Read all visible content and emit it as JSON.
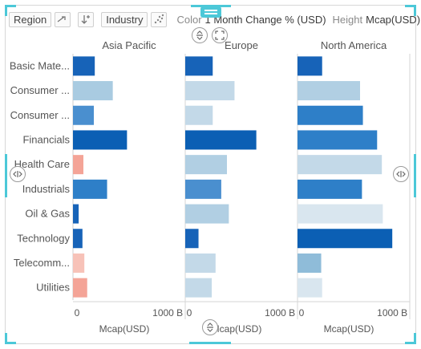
{
  "toolbar": {
    "row_by": "Region",
    "col_by": "Industry",
    "color_label": "Color",
    "color_value": "1 Month Change % (USD)",
    "height_label": "Height",
    "height_value": "Mcap(USD)"
  },
  "icons": {
    "swap": "swap-arrow-icon",
    "sort": "sort-descending-icon",
    "scatter": "scatter-plot-icon",
    "expand_vertical": "expand-vertical-icon",
    "fullscreen": "fullscreen-icon",
    "resize_horizontal": "resize-horizontal-icon",
    "drag_handle": "drag-handle-icon"
  },
  "colors": {
    "dark_blue": "#0b5fb4",
    "medium_blue": "#2e7fc8",
    "light_blue": "#a9cbe1",
    "pale_blue": "#cfe0ec",
    "salmon": "#f4a497",
    "accent": "#4cc8d8"
  },
  "chart_data": {
    "type": "bar",
    "orientation": "horizontal",
    "categories": [
      "Basic Mate...",
      "Consumer ...",
      "Consumer ...",
      "Financials",
      "Health Care",
      "Industrials",
      "Oil & Gas",
      "Technology",
      "Telecomm...",
      "Utilities"
    ],
    "panels": [
      {
        "name": "Asia Pacific",
        "values": [
          230,
          420,
          220,
          570,
          110,
          360,
          60,
          100,
          120,
          150
        ],
        "colors": [
          "#1763b8",
          "#a9cbe1",
          "#4a8fcf",
          "#0b5fb4",
          "#f4a497",
          "#2e7fc8",
          "#1763b8",
          "#1763b8",
          "#f7c2b8",
          "#f4a497"
        ]
      },
      {
        "name": "Europe",
        "values": [
          290,
          520,
          290,
          750,
          440,
          380,
          460,
          140,
          320,
          280
        ],
        "colors": [
          "#1763b8",
          "#c3d9e8",
          "#c3d9e8",
          "#0b5fb4",
          "#b1cfe3",
          "#4a8fcf",
          "#b1cfe3",
          "#1763b8",
          "#c3d9e8",
          "#c3d9e8"
        ]
      },
      {
        "name": "North America",
        "values": [
          260,
          660,
          690,
          840,
          890,
          680,
          900,
          1000,
          250,
          260
        ],
        "colors": [
          "#1763b8",
          "#b1cfe3",
          "#2e7fc8",
          "#2e7fc8",
          "#c3d9e8",
          "#2e7fc8",
          "#d9e6ef",
          "#0b5fb4",
          "#8fbcd9",
          "#d9e6ef"
        ]
      }
    ],
    "x_tick_labels": [
      "0",
      "1000 B"
    ],
    "xlim": [
      0,
      1100
    ],
    "xlabel": "Mcap(USD)",
    "grid": false,
    "legend": "none"
  }
}
